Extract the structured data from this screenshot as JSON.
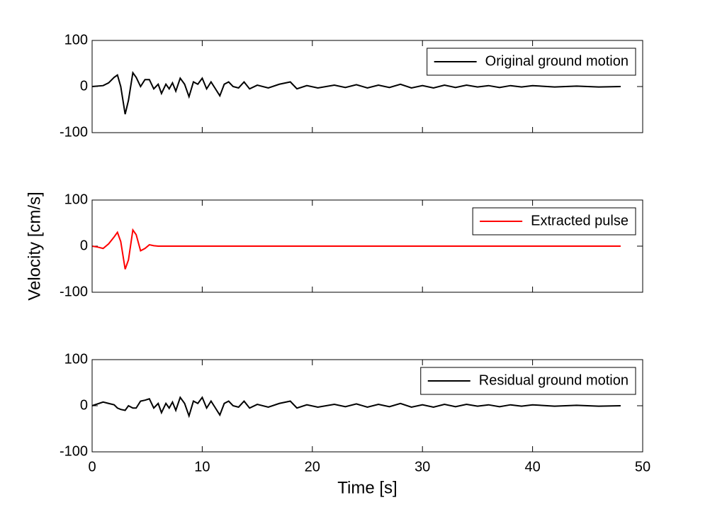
{
  "chart_data": [
    {
      "type": "line",
      "xlim": [
        0,
        50
      ],
      "xticks": [
        0,
        10,
        20,
        30,
        40,
        50
      ],
      "show_xtick_labels": false,
      "ylim": [
        -100,
        100
      ],
      "yticks": [
        -100,
        0,
        100
      ],
      "legend": "upper right",
      "x": [
        0,
        1,
        1.5,
        2,
        2.3,
        2.6,
        3,
        3.3,
        3.7,
        4,
        4.4,
        4.8,
        5.2,
        5.6,
        6,
        6.3,
        6.7,
        7,
        7.3,
        7.6,
        8,
        8.4,
        8.8,
        9.2,
        9.6,
        10,
        10.4,
        10.8,
        11.2,
        11.6,
        12,
        12.4,
        12.8,
        13.3,
        13.8,
        14.3,
        15,
        16,
        17,
        18,
        18.6,
        19.5,
        20.5,
        22,
        23,
        24,
        25,
        26,
        27,
        28,
        29,
        30,
        31,
        32,
        33,
        34,
        35,
        36,
        37,
        38,
        39,
        40,
        42,
        44,
        46,
        48
      ],
      "series": [
        {
          "name": "Original ground motion",
          "color": "#000000",
          "values": [
            0,
            2,
            8,
            20,
            25,
            0,
            -60,
            -30,
            30,
            20,
            0,
            15,
            15,
            -5,
            5,
            -15,
            5,
            -5,
            8,
            -10,
            18,
            5,
            -22,
            10,
            5,
            18,
            -5,
            10,
            -5,
            -20,
            5,
            10,
            0,
            -3,
            10,
            -5,
            3,
            -3,
            5,
            10,
            -5,
            2,
            -3,
            3,
            -2,
            4,
            -3,
            3,
            -2,
            5,
            -3,
            2,
            -3,
            3,
            -2,
            3,
            -1,
            2,
            -2,
            2,
            -1,
            2,
            -1,
            1,
            -1,
            0
          ]
        }
      ]
    },
    {
      "type": "line",
      "xlim": [
        0,
        50
      ],
      "xticks": [
        0,
        10,
        20,
        30,
        40,
        50
      ],
      "show_xtick_labels": false,
      "ylim": [
        -100,
        100
      ],
      "yticks": [
        -100,
        0,
        100
      ],
      "legend": "upper right",
      "y_label": "Velocity [cm/s]",
      "x": [
        0,
        0.5,
        1,
        1.5,
        2,
        2.3,
        2.6,
        3,
        3.3,
        3.7,
        4,
        4.4,
        4.8,
        5.2,
        5.6,
        6,
        8,
        48
      ],
      "series": [
        {
          "name": "Extracted pulse",
          "color": "#ff0000",
          "values": [
            0,
            -2,
            -5,
            5,
            20,
            30,
            10,
            -50,
            -30,
            35,
            25,
            -10,
            -5,
            3,
            1,
            0,
            0,
            0
          ]
        }
      ]
    },
    {
      "type": "line",
      "xlim": [
        0,
        50
      ],
      "xticks": [
        0,
        10,
        20,
        30,
        40,
        50
      ],
      "show_xtick_labels": true,
      "ylim": [
        -100,
        100
      ],
      "yticks": [
        -100,
        0,
        100
      ],
      "legend": "upper right",
      "x_label": "Time [s]",
      "x": [
        0,
        1,
        1.5,
        2,
        2.3,
        2.6,
        3,
        3.3,
        3.7,
        4,
        4.4,
        4.8,
        5.2,
        5.6,
        6,
        6.3,
        6.7,
        7,
        7.3,
        7.6,
        8,
        8.4,
        8.8,
        9.2,
        9.6,
        10,
        10.4,
        10.8,
        11.2,
        11.6,
        12,
        12.4,
        12.8,
        13.3,
        13.8,
        14.3,
        15,
        16,
        17,
        18,
        18.6,
        19.5,
        20.5,
        22,
        23,
        24,
        25,
        26,
        27,
        28,
        29,
        30,
        31,
        32,
        33,
        34,
        35,
        36,
        37,
        38,
        39,
        40,
        42,
        44,
        46,
        48
      ],
      "series": [
        {
          "name": "Residual ground motion",
          "color": "#000000",
          "values": [
            0,
            8,
            5,
            2,
            -5,
            -8,
            -10,
            0,
            -5,
            -5,
            10,
            12,
            15,
            -5,
            5,
            -15,
            5,
            -5,
            8,
            -10,
            18,
            5,
            -22,
            10,
            5,
            18,
            -5,
            10,
            -5,
            -20,
            5,
            10,
            0,
            -3,
            10,
            -5,
            3,
            -3,
            5,
            10,
            -5,
            2,
            -3,
            3,
            -2,
            4,
            -3,
            3,
            -2,
            5,
            -3,
            2,
            -3,
            3,
            -2,
            3,
            -1,
            2,
            -2,
            2,
            -1,
            2,
            -1,
            1,
            -1,
            0
          ]
        }
      ]
    }
  ]
}
